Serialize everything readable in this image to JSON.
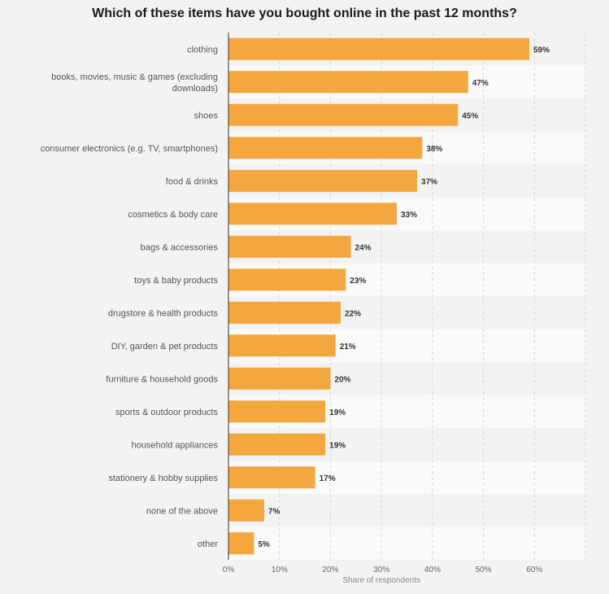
{
  "chart_data": {
    "type": "bar",
    "orientation": "horizontal",
    "title": "Which of these items have you bought online in the past 12 months?",
    "xlabel": "Share of respondents",
    "ylabel": "",
    "xlim": [
      0,
      70
    ],
    "ticks": [
      "0%",
      "10%",
      "20%",
      "30%",
      "40%",
      "50%",
      "60%"
    ],
    "grid": true,
    "bar_color": "#f4a63f",
    "categories": [
      [
        "clothing"
      ],
      [
        "books, movies, music & games (excluding",
        "downloads)"
      ],
      [
        "shoes"
      ],
      [
        "consumer electronics (e.g. TV, smartphones)"
      ],
      [
        "food & drinks"
      ],
      [
        "cosmetics & body care"
      ],
      [
        "bags & accessories"
      ],
      [
        "toys & baby products"
      ],
      [
        "drugstore & health products"
      ],
      [
        "DIY, garden & pet products"
      ],
      [
        "furniture & household goods"
      ],
      [
        "sports & outdoor products"
      ],
      [
        "household appliances"
      ],
      [
        "stationery & hobby supplies"
      ],
      [
        "none of the above"
      ],
      [
        "other"
      ]
    ],
    "values": [
      59,
      47,
      45,
      38,
      37,
      33,
      24,
      23,
      22,
      21,
      20,
      19,
      19,
      17,
      7,
      5
    ],
    "value_labels": [
      "59%",
      "47%",
      "45%",
      "38%",
      "37%",
      "33%",
      "24%",
      "23%",
      "22%",
      "21%",
      "20%",
      "19%",
      "19%",
      "17%",
      "7%",
      "5%"
    ]
  }
}
